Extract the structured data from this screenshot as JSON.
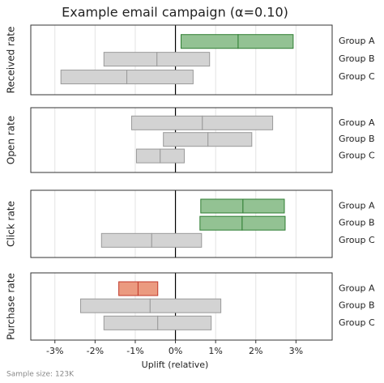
{
  "chart_data": {
    "type": "interval",
    "title": "Example email campaign (α=0.10)",
    "xlabel": "Uplift (relative)",
    "note": "Sample size: 123K",
    "xlim": [
      -3.6,
      3.9
    ],
    "xticks": [
      {
        "value": -3,
        "label": "-3%"
      },
      {
        "value": -2,
        "label": "-2%"
      },
      {
        "value": -1,
        "label": "-1%"
      },
      {
        "value": 0,
        "label": "0%"
      },
      {
        "value": 1,
        "label": "1%"
      },
      {
        "value": 2,
        "label": "2%"
      },
      {
        "value": 3,
        "label": "3%"
      }
    ],
    "grid": true,
    "panels": [
      {
        "ylabel": "Received rate",
        "categories": [
          "Group A",
          "Group B",
          "Group C"
        ],
        "low": [
          0.14,
          -1.78,
          -2.85
        ],
        "mid": [
          1.56,
          -0.46,
          -1.21
        ],
        "high": [
          2.93,
          0.85,
          0.44
        ],
        "colors": [
          "#93c293",
          "#d3d3d3",
          "#d3d3d3"
        ],
        "edges": [
          "#2e7d32",
          "#9a9a9a",
          "#9a9a9a"
        ]
      },
      {
        "ylabel": "Open rate",
        "categories": [
          "Group A",
          "Group B",
          "Group C"
        ],
        "low": [
          -1.09,
          -0.3,
          -0.97
        ],
        "mid": [
          0.67,
          0.81,
          -0.38
        ],
        "high": [
          2.42,
          1.9,
          0.22
        ],
        "colors": [
          "#d3d3d3",
          "#d3d3d3",
          "#d3d3d3"
        ],
        "edges": [
          "#9a9a9a",
          "#9a9a9a",
          "#9a9a9a"
        ]
      },
      {
        "ylabel": "Click rate",
        "categories": [
          "Group A",
          "Group B",
          "Group C"
        ],
        "low": [
          0.63,
          0.61,
          -1.84
        ],
        "mid": [
          1.68,
          1.66,
          -0.59
        ],
        "high": [
          2.71,
          2.73,
          0.65
        ],
        "colors": [
          "#93c293",
          "#93c293",
          "#d3d3d3"
        ],
        "edges": [
          "#2e7d32",
          "#2e7d32",
          "#9a9a9a"
        ]
      },
      {
        "ylabel": "Purchase rate",
        "categories": [
          "Group A",
          "Group B",
          "Group C"
        ],
        "low": [
          -1.41,
          -2.36,
          -1.78
        ],
        "mid": [
          -0.93,
          -0.63,
          -0.44
        ],
        "high": [
          -0.44,
          1.13,
          0.89
        ],
        "colors": [
          "#eb9a80",
          "#d3d3d3",
          "#d3d3d3"
        ],
        "edges": [
          "#c0392b",
          "#9a9a9a",
          "#9a9a9a"
        ]
      }
    ]
  }
}
